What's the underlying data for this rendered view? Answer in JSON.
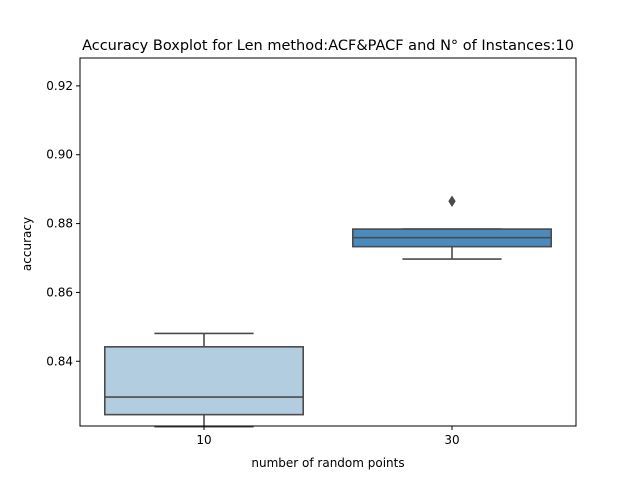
{
  "chart_data": {
    "type": "boxplot",
    "title": "Accuracy Boxplot for Len method:ACF&PACF and N° of Instances:10",
    "xlabel": "number of random points",
    "ylabel": "accuracy",
    "categories": [
      "10",
      "30"
    ],
    "ylim": [
      0.8212,
      0.9281
    ],
    "yticks": [
      0.84,
      0.86,
      0.88,
      0.9,
      0.92
    ],
    "ytick_labels": [
      "0.84",
      "0.86",
      "0.88",
      "0.90",
      "0.92"
    ],
    "grid": false,
    "legend": "none",
    "colors": [
      "#b3cde0",
      "#4a8bbf"
    ],
    "line_color": "#4b4b4b",
    "boxes": [
      {
        "category": "10",
        "whisker_low": 0.821,
        "q1": 0.8245,
        "median": 0.8296,
        "q3": 0.8442,
        "whisker_high": 0.8481,
        "outliers": []
      },
      {
        "category": "30",
        "whisker_low": 0.8697,
        "q1": 0.8733,
        "median": 0.8759,
        "q3": 0.8784,
        "whisker_high": 0.8784,
        "outliers": [
          0.8865
        ]
      }
    ]
  }
}
